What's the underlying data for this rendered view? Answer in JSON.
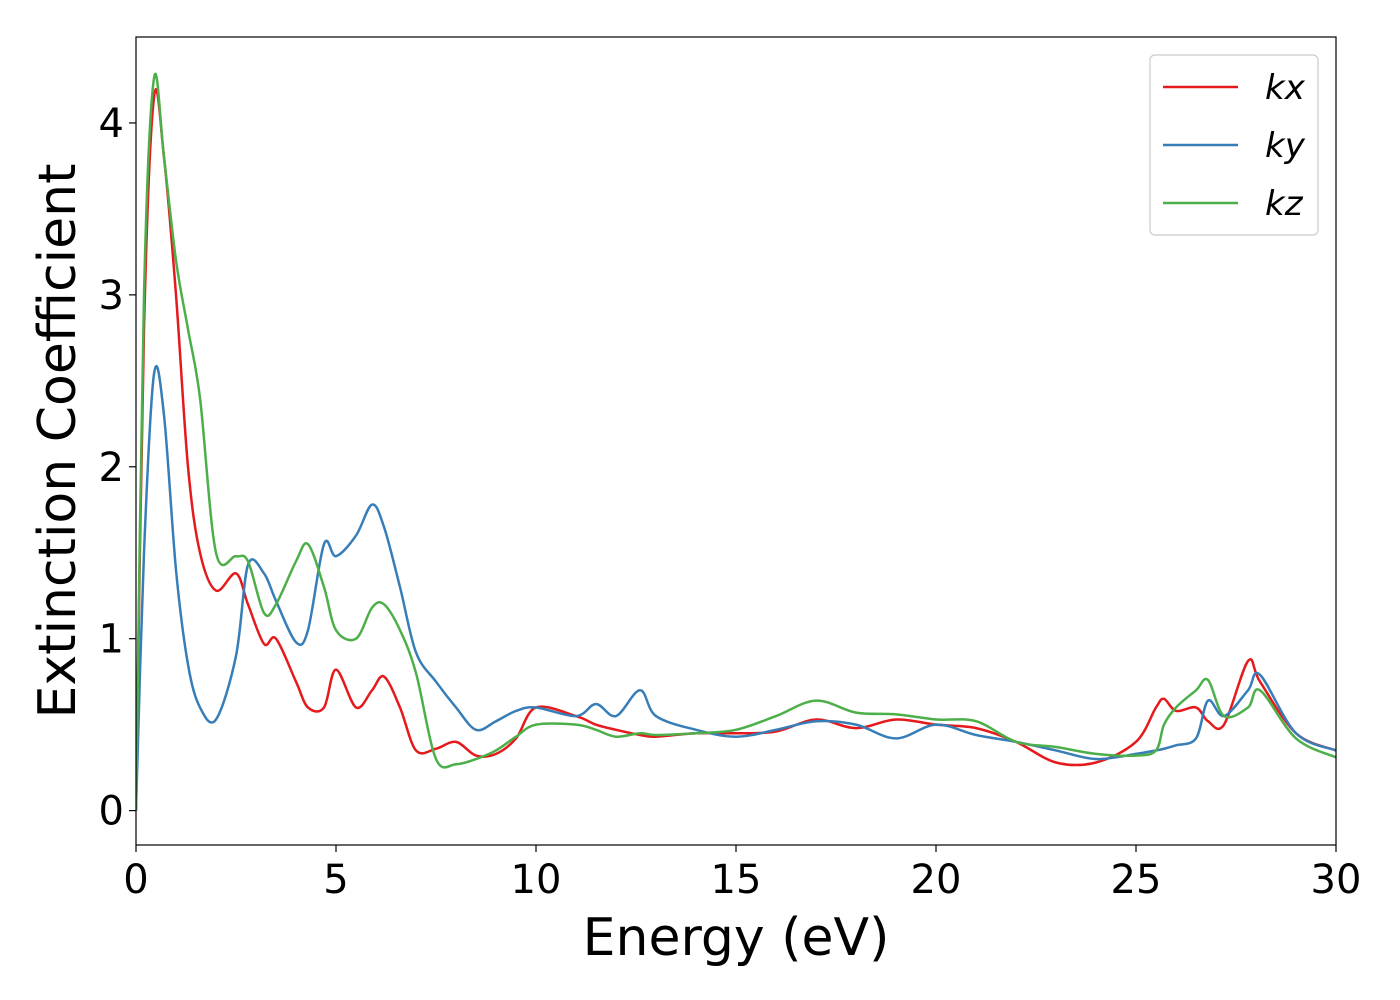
{
  "chart_data": {
    "type": "line",
    "xlabel": "Energy (eV)",
    "ylabel": "Extinction Coefficient",
    "x": [
      0,
      0.2,
      0.45,
      0.7,
      1,
      1.3,
      1.6,
      2,
      2.5,
      2.8,
      3.2,
      3.5,
      4,
      4.3,
      4.7,
      5,
      5.5,
      5.9,
      6.2,
      6.6,
      7,
      7.5,
      8,
      8.5,
      9,
      9.5,
      10,
      11,
      11.5,
      12,
      12.6,
      13,
      14,
      15,
      16,
      17,
      18,
      19,
      20,
      21,
      22,
      23,
      24,
      25,
      25.5,
      25.7,
      26,
      26.5,
      26.8,
      27.2,
      27.8,
      28.1,
      29,
      30
    ],
    "series": [
      {
        "name": "kx",
        "color": "#e41a1c",
        "values": [
          0,
          2.8,
          4.15,
          3.8,
          3.0,
          2.0,
          1.5,
          1.28,
          1.38,
          1.2,
          0.97,
          1.0,
          0.75,
          0.6,
          0.6,
          0.82,
          0.6,
          0.7,
          0.78,
          0.6,
          0.35,
          0.36,
          0.4,
          0.32,
          0.33,
          0.42,
          0.6,
          0.55,
          0.5,
          0.47,
          0.44,
          0.43,
          0.45,
          0.45,
          0.46,
          0.53,
          0.48,
          0.53,
          0.5,
          0.48,
          0.4,
          0.28,
          0.28,
          0.4,
          0.6,
          0.65,
          0.58,
          0.6,
          0.52,
          0.5,
          0.87,
          0.75,
          0.45,
          0.35
        ]
      },
      {
        "name": "ky",
        "color": "#377eb8",
        "values": [
          0,
          1.5,
          2.54,
          2.3,
          1.4,
          0.85,
          0.6,
          0.53,
          0.9,
          1.43,
          1.38,
          1.22,
          0.98,
          1.05,
          1.55,
          1.48,
          1.6,
          1.78,
          1.65,
          1.3,
          0.92,
          0.75,
          0.6,
          0.47,
          0.52,
          0.58,
          0.6,
          0.55,
          0.62,
          0.55,
          0.7,
          0.55,
          0.47,
          0.43,
          0.47,
          0.52,
          0.5,
          0.42,
          0.5,
          0.44,
          0.4,
          0.35,
          0.3,
          0.33,
          0.35,
          0.36,
          0.38,
          0.42,
          0.64,
          0.55,
          0.7,
          0.79,
          0.45,
          0.35
        ]
      },
      {
        "name": "kz",
        "color": "#4daf4a",
        "values": [
          0,
          3.0,
          4.26,
          3.8,
          3.2,
          2.8,
          2.4,
          1.5,
          1.48,
          1.45,
          1.15,
          1.2,
          1.45,
          1.55,
          1.3,
          1.05,
          1.0,
          1.18,
          1.2,
          1.05,
          0.8,
          0.3,
          0.27,
          0.3,
          0.35,
          0.43,
          0.5,
          0.5,
          0.47,
          0.43,
          0.45,
          0.44,
          0.45,
          0.47,
          0.55,
          0.64,
          0.57,
          0.56,
          0.53,
          0.52,
          0.4,
          0.37,
          0.33,
          0.32,
          0.35,
          0.5,
          0.6,
          0.7,
          0.76,
          0.55,
          0.6,
          0.7,
          0.42,
          0.31
        ]
      }
    ],
    "xlim": [
      0,
      30
    ],
    "xticks": [
      0,
      5,
      10,
      15,
      20,
      25,
      30
    ],
    "ylim": [
      -0.2,
      4.5
    ],
    "yticks": [
      0,
      1,
      2,
      3,
      4
    ],
    "legend": "upper right"
  }
}
